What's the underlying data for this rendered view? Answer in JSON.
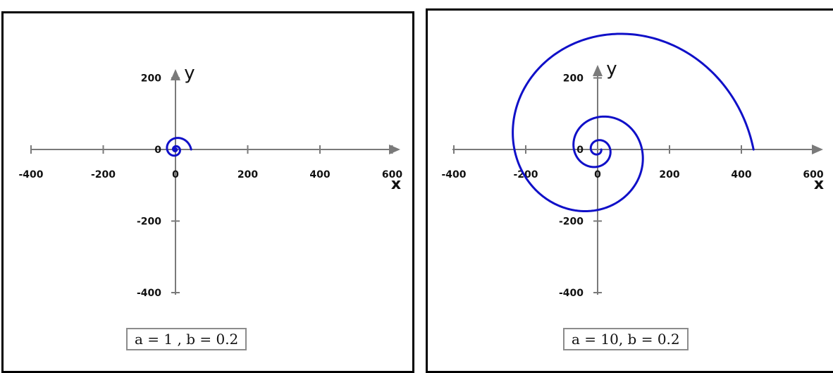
{
  "chart_data": [
    {
      "type": "line",
      "title": "",
      "xlabel": "x",
      "ylabel": "y",
      "xlim": [
        -400,
        600
      ],
      "ylim": [
        -400,
        200
      ],
      "x_ticks": [
        -400,
        -200,
        0,
        200,
        400,
        600
      ],
      "x_tick_labels": [
        "-400",
        "-200",
        "0",
        "200",
        "400",
        "600"
      ],
      "y_ticks": [
        200,
        0,
        -200,
        -400
      ],
      "y_tick_labels": [
        "200",
        "0",
        "-200",
        "-400"
      ],
      "grid": false,
      "curve": "logarithmic spiral r = a·e^(bθ)",
      "params": {
        "a": 1,
        "b": 0.2
      },
      "theta_range": [
        0,
        18.85
      ],
      "annotation": "a = 1 , b = 0.2",
      "color": "#1010c8"
    },
    {
      "type": "line",
      "title": "",
      "xlabel": "x",
      "ylabel": "y",
      "xlim": [
        -400,
        600
      ],
      "ylim": [
        -400,
        200
      ],
      "x_ticks": [
        -400,
        -200,
        0,
        200,
        400,
        600
      ],
      "x_tick_labels": [
        "-400",
        "-200",
        "0",
        "200",
        "400",
        "600"
      ],
      "y_ticks": [
        200,
        0,
        -200,
        -400
      ],
      "y_tick_labels": [
        "200",
        "0",
        "-200",
        "-400"
      ],
      "grid": false,
      "curve": "logarithmic spiral r = a·e^(bθ)",
      "params": {
        "a": 10,
        "b": 0.2
      },
      "theta_range": [
        0,
        18.85
      ],
      "annotation": "a = 10, b = 0.2",
      "color": "#1010c8"
    }
  ],
  "colors": {
    "axis": "#7a7a7a",
    "curve": "#1010c8",
    "frame": "#000000"
  }
}
